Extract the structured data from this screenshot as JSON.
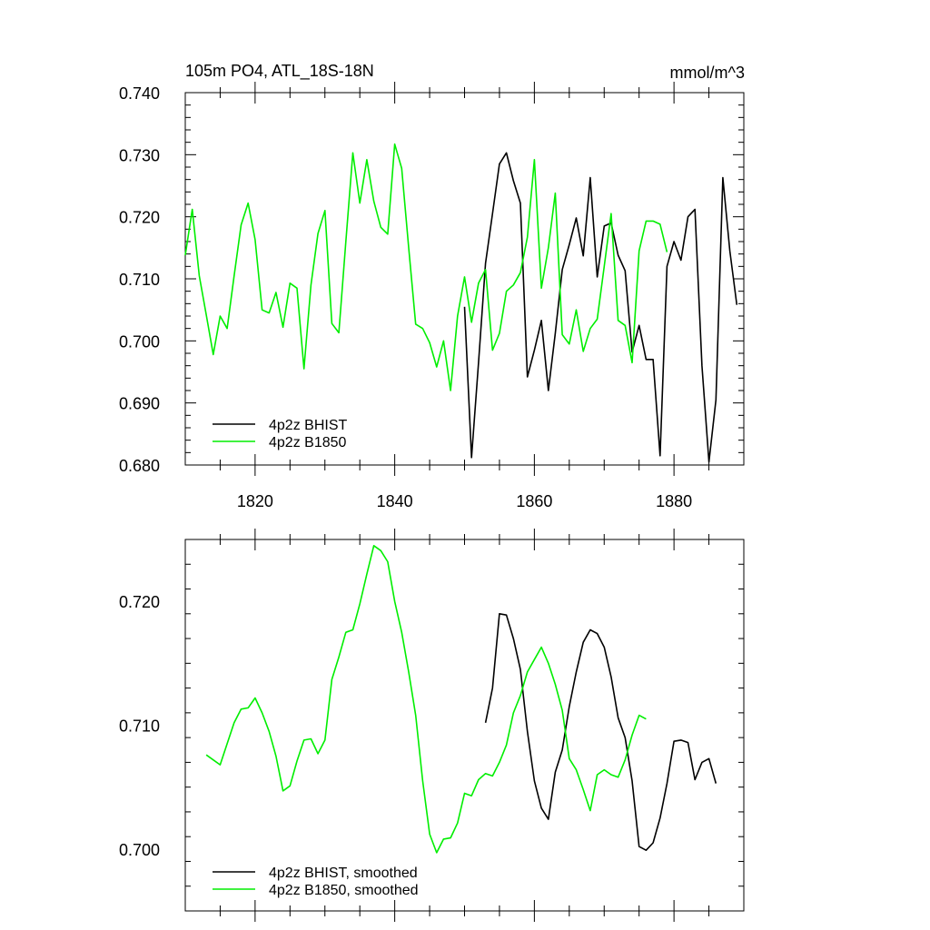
{
  "chart_data": [
    {
      "type": "line",
      "title": "105m PO4, ATL_18S-18N",
      "units": "mmol/m^3",
      "xlim": [
        1810,
        1890
      ],
      "ylim": [
        0.68,
        0.74
      ],
      "x_ticks": [
        1820,
        1840,
        1860,
        1880
      ],
      "x_tick_labels": [
        "1820",
        "1840",
        "1860",
        "1880"
      ],
      "y_ticks": [
        0.68,
        0.69,
        0.7,
        0.71,
        0.72,
        0.73,
        0.74
      ],
      "y_tick_labels": [
        "0.680",
        "0.690",
        "0.700",
        "0.710",
        "0.720",
        "0.730",
        "0.740"
      ],
      "legend_position": "bottom-left",
      "series": [
        {
          "name": "4p2z BHIST",
          "color": "#000000",
          "x": [
            1850,
            1851,
            1852,
            1853,
            1854,
            1855,
            1856,
            1857,
            1858,
            1859,
            1860,
            1861,
            1862,
            1863,
            1864,
            1865,
            1866,
            1867,
            1868,
            1869,
            1870,
            1871,
            1872,
            1873,
            1874,
            1875,
            1876,
            1877,
            1878,
            1879,
            1880,
            1881,
            1882,
            1883,
            1884,
            1885,
            1886,
            1887,
            1888,
            1889
          ],
          "y": [
            0.7055,
            0.6812,
            0.6965,
            0.7125,
            0.7205,
            0.7285,
            0.7303,
            0.7258,
            0.7222,
            0.6942,
            0.6985,
            0.7033,
            0.692,
            0.7012,
            0.7115,
            0.7155,
            0.7198,
            0.7137,
            0.7263,
            0.7103,
            0.7185,
            0.719,
            0.7138,
            0.7113,
            0.6982,
            0.7025,
            0.697,
            0.697,
            0.6815,
            0.712,
            0.716,
            0.713,
            0.72,
            0.7212,
            0.696,
            0.6805,
            0.6905,
            0.7263,
            0.7145,
            0.7058
          ]
        },
        {
          "name": "4p2z B1850",
          "color": "#00ee00",
          "x": [
            1810,
            1811,
            1812,
            1813,
            1814,
            1815,
            1816,
            1817,
            1818,
            1819,
            1820,
            1821,
            1822,
            1823,
            1824,
            1825,
            1826,
            1827,
            1828,
            1829,
            1830,
            1831,
            1832,
            1833,
            1834,
            1835,
            1836,
            1837,
            1838,
            1839,
            1840,
            1841,
            1842,
            1843,
            1844,
            1845,
            1846,
            1847,
            1848,
            1849,
            1850,
            1851,
            1852,
            1853,
            1854,
            1855,
            1856,
            1857,
            1858,
            1859,
            1860,
            1861,
            1862,
            1863,
            1864,
            1865,
            1866,
            1867,
            1868,
            1869,
            1870,
            1871,
            1872,
            1873,
            1874,
            1875,
            1876,
            1877,
            1878,
            1879
          ],
          "y": [
            0.7138,
            0.7212,
            0.7105,
            0.7042,
            0.6978,
            0.704,
            0.702,
            0.7105,
            0.7187,
            0.7222,
            0.7163,
            0.705,
            0.7045,
            0.7078,
            0.7022,
            0.7093,
            0.7085,
            0.6955,
            0.709,
            0.7173,
            0.721,
            0.7028,
            0.7013,
            0.716,
            0.7303,
            0.7222,
            0.7292,
            0.7225,
            0.7183,
            0.7172,
            0.7317,
            0.7278,
            0.715,
            0.7027,
            0.702,
            0.6997,
            0.6958,
            0.7,
            0.692,
            0.704,
            0.7103,
            0.703,
            0.7093,
            0.7115,
            0.6985,
            0.7012,
            0.708,
            0.709,
            0.711,
            0.7167,
            0.7292,
            0.7085,
            0.715,
            0.7238,
            0.701,
            0.6995,
            0.705,
            0.6983,
            0.702,
            0.7035,
            0.712,
            0.7205,
            0.7033,
            0.7025,
            0.6965,
            0.7145,
            0.7193,
            0.7193,
            0.7188,
            0.7143
          ]
        }
      ]
    },
    {
      "type": "line",
      "xlim": [
        1810,
        1890
      ],
      "ylim": [
        0.695,
        0.725
      ],
      "x_ticks": [
        1820,
        1840,
        1860,
        1880
      ],
      "y_ticks": [
        0.7,
        0.71,
        0.72
      ],
      "y_tick_labels": [
        "0.700",
        "0.710",
        "0.720"
      ],
      "legend_position": "bottom-left",
      "series": [
        {
          "name": "4p2z BHIST, smoothed",
          "color": "#000000",
          "x": [
            1853,
            1854,
            1855,
            1856,
            1857,
            1858,
            1859,
            1860,
            1861,
            1862,
            1863,
            1864,
            1865,
            1866,
            1867,
            1868,
            1869,
            1870,
            1871,
            1872,
            1873,
            1874,
            1875,
            1876,
            1877,
            1878,
            1879,
            1880,
            1881,
            1882,
            1883,
            1884,
            1885,
            1886
          ],
          "y": [
            0.7102,
            0.713,
            0.719,
            0.7189,
            0.717,
            0.7145,
            0.7095,
            0.7055,
            0.7033,
            0.7024,
            0.7062,
            0.708,
            0.7115,
            0.7143,
            0.7167,
            0.7177,
            0.7174,
            0.7163,
            0.7139,
            0.7106,
            0.709,
            0.7055,
            0.7002,
            0.6999,
            0.7005,
            0.7025,
            0.7053,
            0.7087,
            0.7088,
            0.7086,
            0.7056,
            0.707,
            0.7073,
            0.7053
          ]
        },
        {
          "name": "4p2z B1850, smoothed",
          "color": "#00ee00",
          "x": [
            1813,
            1814,
            1815,
            1816,
            1817,
            1818,
            1819,
            1820,
            1821,
            1822,
            1823,
            1824,
            1825,
            1826,
            1827,
            1828,
            1829,
            1830,
            1831,
            1832,
            1833,
            1834,
            1835,
            1836,
            1837,
            1838,
            1839,
            1840,
            1841,
            1842,
            1843,
            1844,
            1845,
            1846,
            1847,
            1848,
            1849,
            1850,
            1851,
            1852,
            1853,
            1854,
            1855,
            1856,
            1857,
            1858,
            1859,
            1860,
            1861,
            1862,
            1863,
            1864,
            1865,
            1866,
            1867,
            1868,
            1869,
            1870,
            1871,
            1872,
            1873,
            1874,
            1875,
            1876
          ],
          "y": [
            0.7076,
            0.7072,
            0.7068,
            0.7085,
            0.7102,
            0.7113,
            0.7114,
            0.7122,
            0.711,
            0.7095,
            0.7075,
            0.7047,
            0.7051,
            0.7071,
            0.7088,
            0.7089,
            0.7077,
            0.7088,
            0.7137,
            0.7155,
            0.7175,
            0.7177,
            0.7198,
            0.7222,
            0.7245,
            0.7241,
            0.7232,
            0.72,
            0.7175,
            0.7143,
            0.7108,
            0.7055,
            0.7012,
            0.6997,
            0.7008,
            0.7009,
            0.7021,
            0.7045,
            0.7043,
            0.7056,
            0.7061,
            0.7059,
            0.707,
            0.7084,
            0.711,
            0.7124,
            0.7143,
            0.7153,
            0.7163,
            0.715,
            0.7133,
            0.7112,
            0.7073,
            0.7064,
            0.7048,
            0.7031,
            0.706,
            0.7064,
            0.706,
            0.7058,
            0.7072,
            0.7092,
            0.7108,
            0.7105
          ]
        }
      ]
    }
  ]
}
